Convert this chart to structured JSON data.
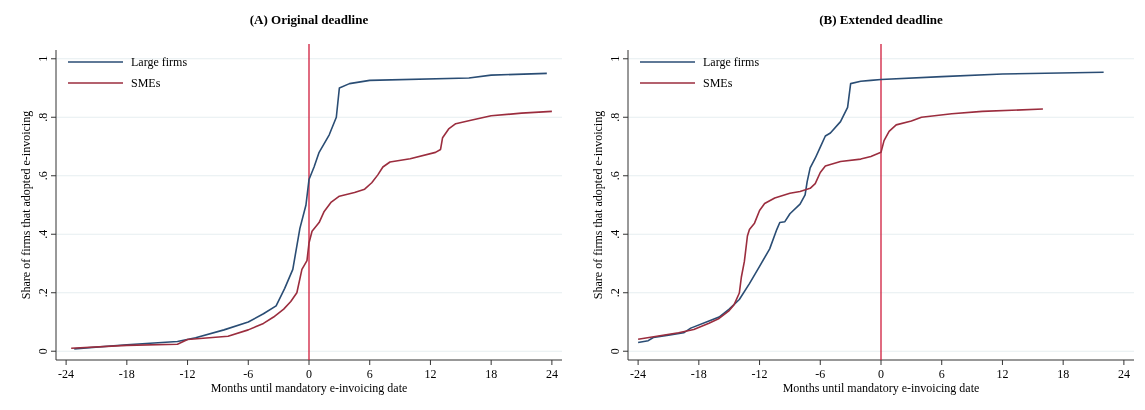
{
  "chart_data": [
    {
      "type": "line",
      "title": "(A) Original deadline",
      "xlabel": "Months until mandatory e-invoicing date",
      "ylabel": "Share of firms that adopted e-invoicing",
      "xlim": [
        -25,
        25
      ],
      "xticks": [
        -24,
        -18,
        -12,
        -6,
        0,
        6,
        12,
        18,
        24
      ],
      "ylim": [
        -0.03,
        1.03
      ],
      "yticks": [
        {
          "value": 0,
          "label": "0"
        },
        {
          "value": 0.2,
          "label": ".2"
        },
        {
          "value": 0.4,
          "label": ".4"
        },
        {
          "value": 0.6,
          "label": ".6"
        },
        {
          "value": 0.8,
          "label": ".8"
        },
        {
          "value": 1,
          "label": "1"
        }
      ],
      "grid": "y",
      "legend": "top left",
      "line_style": "solid",
      "marker": "none",
      "ref_lines": [
        {
          "axis": "x",
          "value": 0,
          "label": null,
          "color": "#d01c3c"
        }
      ],
      "series": [
        {
          "name": "Large firms",
          "color": "#2a4d74",
          "x": [
            -23.2,
            -18,
            -13,
            -11.2,
            -8.4,
            -6,
            -4.5,
            -3.25,
            -2.4,
            -1.6,
            -0.9,
            -0.3,
            0,
            0.5,
            1,
            2,
            2.7,
            3,
            4,
            6,
            15.8,
            18,
            23.5
          ],
          "values": [
            0.008,
            0.022,
            0.033,
            0.046,
            0.073,
            0.1,
            0.128,
            0.155,
            0.215,
            0.28,
            0.42,
            0.5,
            0.587,
            0.63,
            0.68,
            0.74,
            0.8,
            0.9,
            0.915,
            0.926,
            0.934,
            0.944,
            0.95
          ]
        },
        {
          "name": "SMEs",
          "color": "#9b2d3e",
          "x": [
            -23.5,
            -18,
            -13,
            -12,
            -8,
            -6,
            -4.5,
            -3.5,
            -2.5,
            -1.8,
            -1.2,
            -0.7,
            -0.2,
            0,
            0.3,
            1,
            1.5,
            2.2,
            3,
            4.5,
            5.5,
            6.2,
            6.8,
            7.3,
            8,
            10,
            12.5,
            13,
            13.2,
            13.8,
            14.5,
            16,
            18,
            21,
            24
          ],
          "values": [
            0.01,
            0.02,
            0.024,
            0.04,
            0.051,
            0.073,
            0.095,
            0.117,
            0.144,
            0.17,
            0.2,
            0.28,
            0.31,
            0.37,
            0.41,
            0.44,
            0.478,
            0.51,
            0.53,
            0.543,
            0.554,
            0.576,
            0.603,
            0.63,
            0.647,
            0.658,
            0.68,
            0.69,
            0.73,
            0.76,
            0.778,
            0.79,
            0.805,
            0.814,
            0.82
          ]
        }
      ]
    },
    {
      "type": "line",
      "title": "(B) Extended deadline",
      "xlabel": "Months until mandatory e-invoicing date",
      "ylabel": "Share of firms that adopted e-invoicing",
      "xlim": [
        -25,
        25
      ],
      "xticks": [
        -24,
        -18,
        -12,
        -6,
        0,
        6,
        12,
        18,
        24
      ],
      "ylim": [
        -0.03,
        1.03
      ],
      "yticks": [
        {
          "value": 0,
          "label": "0"
        },
        {
          "value": 0.2,
          "label": ".2"
        },
        {
          "value": 0.4,
          "label": ".4"
        },
        {
          "value": 0.6,
          "label": ".6"
        },
        {
          "value": 0.8,
          "label": ".8"
        },
        {
          "value": 1,
          "label": "1"
        }
      ],
      "grid": "y",
      "legend": "top left",
      "line_style": "solid",
      "marker": "none",
      "ref_lines": [
        {
          "axis": "x",
          "value": 0,
          "label": null,
          "color": "#d01c3c"
        }
      ],
      "series": [
        {
          "name": "Large firms",
          "color": "#2a4d74",
          "x": [
            -24,
            -23,
            -22.5,
            -21,
            -19.5,
            -18.8,
            -17,
            -16,
            -15,
            -14,
            -13,
            -12,
            -11,
            -10.3,
            -10,
            -9.5,
            -9,
            -8,
            -7.5,
            -7.3,
            -7,
            -6.5,
            -6,
            -5.5,
            -5,
            -4,
            -3.3,
            -3,
            -2,
            -1,
            0,
            6,
            12,
            22
          ],
          "values": [
            0.03,
            0.036,
            0.047,
            0.055,
            0.063,
            0.079,
            0.103,
            0.117,
            0.144,
            0.177,
            0.231,
            0.29,
            0.35,
            0.416,
            0.44,
            0.443,
            0.47,
            0.503,
            0.535,
            0.579,
            0.627,
            0.66,
            0.698,
            0.736,
            0.746,
            0.785,
            0.834,
            0.915,
            0.923,
            0.926,
            0.929,
            0.939,
            0.948,
            0.954
          ]
        },
        {
          "name": "SMEs",
          "color": "#9b2d3e",
          "x": [
            -24,
            -22,
            -20,
            -18.5,
            -17,
            -16,
            -15,
            -14.5,
            -14,
            -13.8,
            -13.5,
            -13.2,
            -13,
            -12.5,
            -12,
            -11.5,
            -10.5,
            -9,
            -8,
            -7,
            -6.5,
            -6,
            -5.5,
            -4,
            -2,
            -1,
            0,
            0.3,
            0.8,
            1.5,
            3,
            4,
            7,
            10,
            16
          ],
          "values": [
            0.041,
            0.052,
            0.063,
            0.074,
            0.096,
            0.112,
            0.139,
            0.16,
            0.199,
            0.253,
            0.307,
            0.394,
            0.416,
            0.438,
            0.481,
            0.505,
            0.524,
            0.54,
            0.546,
            0.557,
            0.573,
            0.611,
            0.633,
            0.649,
            0.657,
            0.666,
            0.68,
            0.72,
            0.752,
            0.774,
            0.787,
            0.8,
            0.812,
            0.82,
            0.828
          ]
        }
      ]
    }
  ]
}
